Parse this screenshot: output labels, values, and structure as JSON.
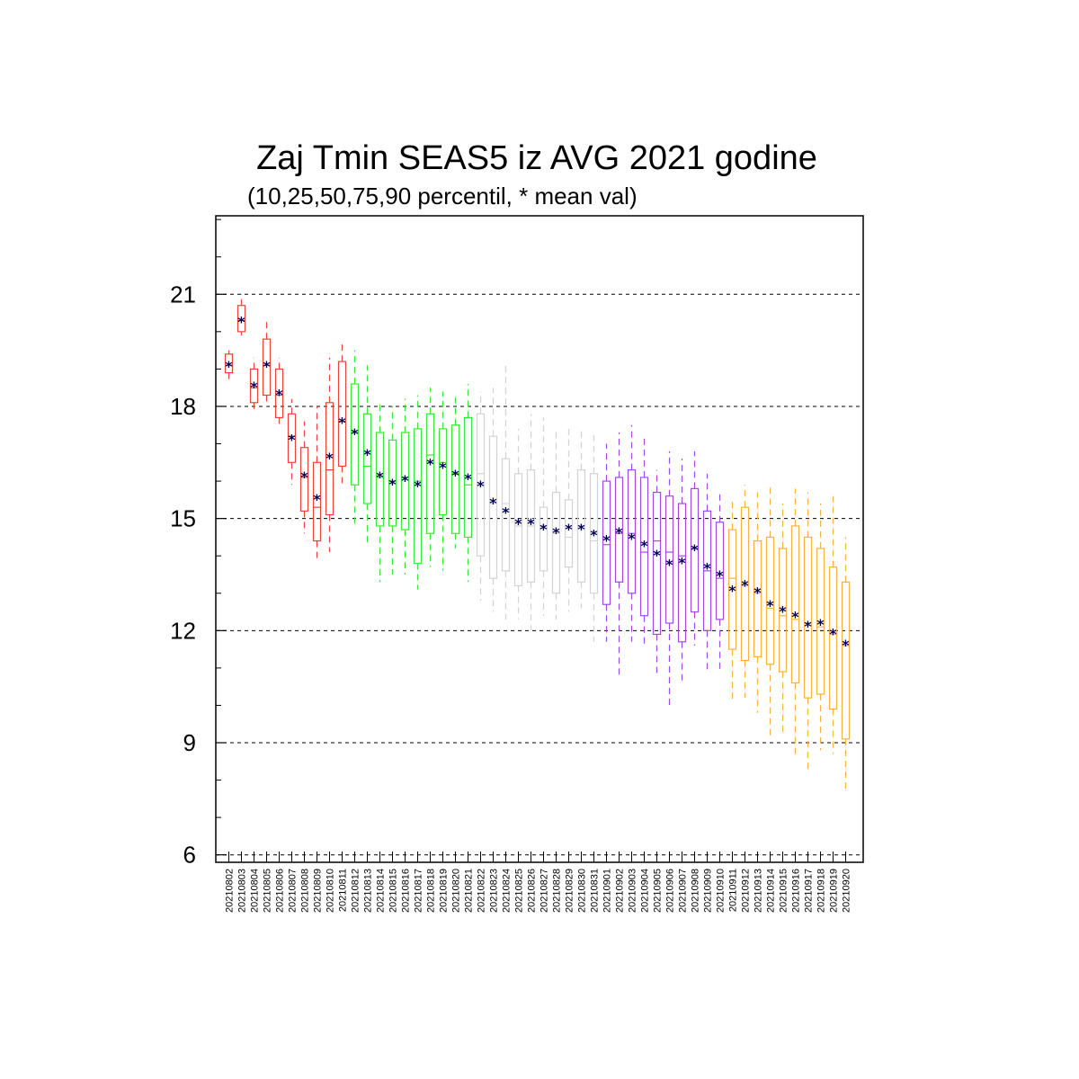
{
  "chart_data": {
    "type": "box",
    "title": "Zaj Tmin SEAS5 iz AVG 2021 godine",
    "subtitle": "(10,25,50,75,90 percentil, * mean val)",
    "xlabel": "",
    "ylabel": "",
    "ylim": [
      5.8,
      23.1
    ],
    "y_ticks": [
      6,
      9,
      12,
      15,
      18,
      21
    ],
    "y_minor_step": 1,
    "grid": "horizontal dashed at major ticks",
    "mean_marker": "*",
    "categories": [
      "20210802",
      "20210803",
      "20210804",
      "20210805",
      "20210806",
      "20210807",
      "20210808",
      "20210809",
      "20210810",
      "20210811",
      "20210812",
      "20210813",
      "20210814",
      "20210815",
      "20210816",
      "20210817",
      "20210818",
      "20210819",
      "20210820",
      "20210821",
      "20210822",
      "20210823",
      "20210824",
      "20210825",
      "20210826",
      "20210827",
      "20210828",
      "20210829",
      "20210830",
      "20210831",
      "20210901",
      "20210902",
      "20210903",
      "20210904",
      "20210905",
      "20210906",
      "20210907",
      "20210908",
      "20210909",
      "20210910",
      "20210911",
      "20210912",
      "20210913",
      "20210914",
      "20210915",
      "20210916",
      "20210917",
      "20210918",
      "20210919",
      "20210920"
    ],
    "group_colors": [
      "#e8453c",
      "#e8453c",
      "#e8453c",
      "#e8453c",
      "#e8453c",
      "#e8453c",
      "#e8453c",
      "#e8453c",
      "#e8453c",
      "#e8453c",
      "#39e839",
      "#39e839",
      "#39e839",
      "#39e839",
      "#39e839",
      "#39e839",
      "#39e839",
      "#39e839",
      "#39e839",
      "#39e839",
      "#d3d3d3",
      "#d3d3d3",
      "#d3d3d3",
      "#d3d3d3",
      "#d3d3d3",
      "#d3d3d3",
      "#d3d3d3",
      "#d3d3d3",
      "#d3d3d3",
      "#d3d3d3",
      "#a349e8",
      "#a349e8",
      "#a349e8",
      "#a349e8",
      "#a349e8",
      "#a349e8",
      "#a349e8",
      "#a349e8",
      "#a349e8",
      "#a349e8",
      "#f5b342",
      "#f5b342",
      "#f5b342",
      "#f5b342",
      "#f5b342",
      "#f5b342",
      "#f5b342",
      "#f5b342",
      "#f5b342",
      "#f5b342"
    ],
    "p10": [
      18.7,
      19.9,
      17.9,
      18.0,
      17.5,
      15.9,
      14.6,
      13.9,
      14.1,
      15.9,
      14.8,
      14.3,
      13.3,
      13.5,
      13.5,
      13.1,
      13.7,
      13.6,
      14.2,
      13.3,
      12.8,
      12.5,
      12.3,
      12.3,
      12.0,
      12.4,
      12.3,
      12.5,
      12.6,
      11.7,
      11.7,
      10.8,
      11.7,
      11.6,
      10.8,
      9.9,
      10.6,
      11.6,
      10.9,
      10.9,
      10.1,
      10.2,
      9.8,
      9.2,
      9.2,
      8.7,
      8.3,
      8.8,
      8.7,
      7.7
    ],
    "p25": [
      18.9,
      20.0,
      18.1,
      18.3,
      17.7,
      16.5,
      15.2,
      14.4,
      15.1,
      16.4,
      15.9,
      15.4,
      14.8,
      14.8,
      14.7,
      13.8,
      14.6,
      15.1,
      14.6,
      14.5,
      14.0,
      13.4,
      13.6,
      13.2,
      13.3,
      13.6,
      13.0,
      13.7,
      13.3,
      13.0,
      12.7,
      13.3,
      13.0,
      12.4,
      11.9,
      12.2,
      11.7,
      12.5,
      12.0,
      12.3,
      11.5,
      11.2,
      11.3,
      11.1,
      10.9,
      10.6,
      10.2,
      10.3,
      9.9,
      9.1
    ],
    "p50": [
      19.1,
      20.3,
      18.5,
      19.1,
      18.3,
      17.2,
      16.1,
      15.3,
      16.3,
      17.6,
      17.3,
      16.4,
      16.1,
      16.0,
      16.1,
      16.0,
      16.7,
      16.5,
      16.2,
      15.9,
      16.2,
      15.4,
      15.4,
      14.8,
      14.8,
      14.8,
      14.6,
      14.5,
      14.8,
      14.4,
      14.3,
      14.6,
      14.6,
      14.1,
      14.4,
      14.1,
      14.0,
      14.2,
      13.6,
      13.4,
      13.4,
      13.2,
      13.0,
      12.6,
      12.4,
      12.3,
      12.2,
      12.1,
      11.9,
      11.6
    ],
    "p75": [
      19.4,
      20.7,
      19.0,
      19.8,
      19.0,
      17.8,
      16.9,
      16.5,
      18.1,
      19.2,
      18.6,
      17.8,
      17.3,
      17.1,
      17.3,
      17.4,
      17.8,
      17.4,
      17.5,
      17.7,
      17.8,
      17.2,
      16.6,
      16.2,
      16.3,
      15.3,
      15.7,
      15.5,
      16.3,
      16.2,
      16.0,
      16.1,
      16.3,
      16.1,
      15.7,
      15.6,
      15.4,
      15.8,
      15.2,
      14.9,
      14.7,
      15.3,
      14.4,
      14.5,
      14.2,
      14.8,
      14.5,
      14.2,
      13.7,
      13.3
    ],
    "p90": [
      19.5,
      21.0,
      19.3,
      20.3,
      19.3,
      18.2,
      17.6,
      18.0,
      19.3,
      19.7,
      19.5,
      19.1,
      18.1,
      18.0,
      18.2,
      18.3,
      18.5,
      18.4,
      18.3,
      18.6,
      18.4,
      18.5,
      19.1,
      17.4,
      17.8,
      17.7,
      17.4,
      17.5,
      17.4,
      17.3,
      17.0,
      17.3,
      17.5,
      17.2,
      16.3,
      16.8,
      16.6,
      16.8,
      16.2,
      15.7,
      15.5,
      15.9,
      15.7,
      15.9,
      15.4,
      15.8,
      15.7,
      15.4,
      15.6,
      14.5
    ],
    "mean": [
      19.1,
      20.3,
      18.55,
      19.1,
      18.35,
      17.15,
      16.15,
      15.55,
      16.65,
      17.6,
      17.3,
      16.75,
      16.15,
      15.95,
      16.05,
      15.9,
      16.5,
      16.4,
      16.2,
      16.1,
      15.9,
      15.45,
      15.2,
      14.9,
      14.9,
      14.75,
      14.65,
      14.75,
      14.75,
      14.6,
      14.45,
      14.65,
      14.5,
      14.3,
      14.05,
      13.8,
      13.85,
      14.2,
      13.7,
      13.5,
      13.1,
      13.25,
      13.05,
      12.7,
      12.55,
      12.4,
      12.15,
      12.2,
      11.95,
      11.65
    ]
  }
}
